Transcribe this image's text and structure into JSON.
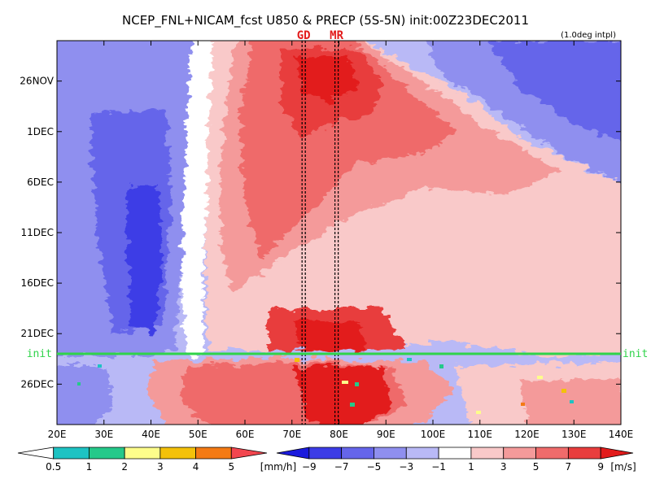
{
  "chart_data": {
    "type": "heatmap",
    "title": "NCEP_FNL+NICAM_fcst U850 & PRECP (5S-5N) init:00Z23DEC2011",
    "note": "(1.0deg intpl)",
    "x_axis": {
      "range": [
        20,
        140
      ],
      "ticks": [
        20,
        30,
        40,
        50,
        60,
        70,
        80,
        90,
        100,
        110,
        120,
        130,
        140
      ],
      "tick_labels": [
        "20E",
        "30E",
        "40E",
        "50E",
        "60E",
        "70E",
        "80E",
        "90E",
        "100E",
        "110E",
        "120E",
        "130E",
        "140E"
      ]
    },
    "y_axis": {
      "range": [
        "2011-11-22",
        "2011-12-30"
      ],
      "ticks": [
        "2011-11-26",
        "2011-12-01",
        "2011-12-06",
        "2011-12-11",
        "2011-12-16",
        "2011-12-21",
        "2011-12-26"
      ],
      "tick_labels": [
        "26NOV",
        "1DEC",
        "6DEC",
        "11DEC",
        "16DEC",
        "21DEC",
        "26DEC"
      ]
    },
    "init_line": {
      "label": "init",
      "date": "2011-12-23",
      "color": "#2fd34a"
    },
    "markers": [
      {
        "label": "GD",
        "lon": 72.5
      },
      {
        "label": "MR",
        "lon": 79.5
      }
    ],
    "precip_colorbar": {
      "levels": [
        "0.5",
        "1",
        "2",
        "3",
        "4",
        "5"
      ],
      "unit": "[mm/h]",
      "colors": [
        "#ffffff",
        "#1ec3c3",
        "#25c98a",
        "#fdfd8b",
        "#f4c10a",
        "#f47a14",
        "#f2464f"
      ]
    },
    "u850_colorbar": {
      "levels": [
        "−9",
        "−7",
        "−5",
        "−3",
        "−1",
        "1",
        "3",
        "5",
        "7",
        "9"
      ],
      "unit": "[m/s]",
      "colors": [
        "#1b1bdd",
        "#3c3ce6",
        "#6565ea",
        "#8f8fef",
        "#b9b9f6",
        "#ffffff",
        "#f9c9c9",
        "#f49a9a",
        "#ef6b6b",
        "#e83d3d",
        "#e21b1b"
      ]
    }
  }
}
